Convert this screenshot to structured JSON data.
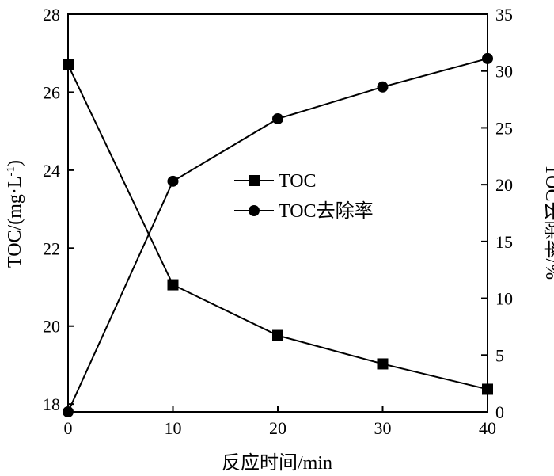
{
  "chart_data": {
    "type": "line",
    "xlabel": "反应时间/min",
    "ylabel_left": "TOC/(mg·L",
    "ylabel_left_sup": "-1",
    "ylabel_left_close": ")",
    "ylabel_right": "TOC去除率/%",
    "x_ticks": [
      0,
      10,
      20,
      30,
      40
    ],
    "y_left_ticks": [
      18,
      20,
      22,
      24,
      26,
      28
    ],
    "y_right_ticks": [
      0,
      5,
      10,
      15,
      20,
      25,
      30,
      35
    ],
    "xlim": [
      0,
      40
    ],
    "ylim_left": [
      17.8,
      28
    ],
    "ylim_right": [
      0,
      35
    ],
    "legend_position": "center",
    "series": [
      {
        "name": "TOC",
        "axis": "left",
        "marker": "square",
        "x": [
          0,
          10,
          20,
          30,
          40
        ],
        "values": [
          26.7,
          21.06,
          19.76,
          19.03,
          18.38
        ]
      },
      {
        "name": "TOC去除率",
        "axis": "right",
        "marker": "circle",
        "x": [
          0,
          10,
          20,
          30,
          40
        ],
        "values": [
          0,
          20.3,
          25.8,
          28.6,
          31.1
        ]
      }
    ]
  }
}
